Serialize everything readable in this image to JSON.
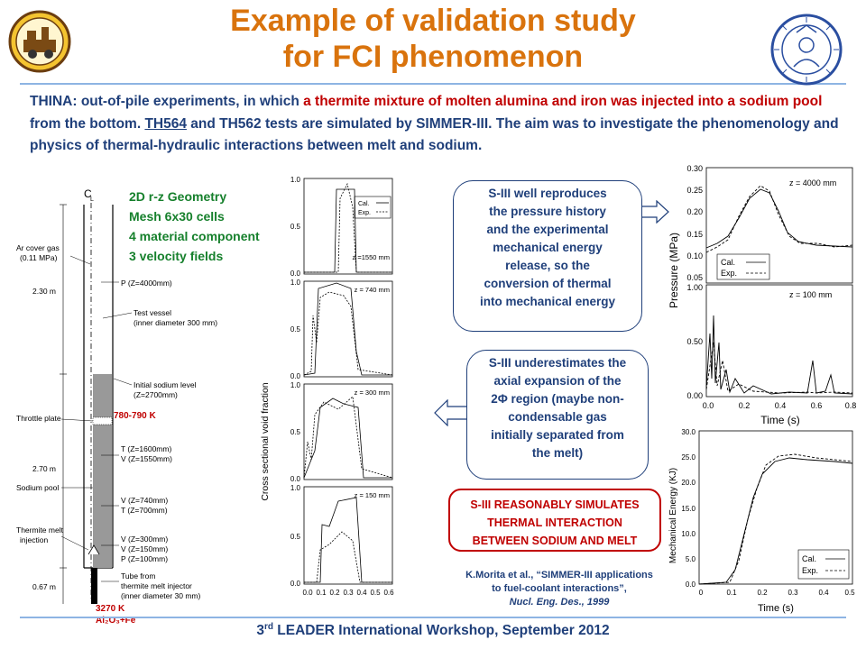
{
  "title": {
    "line1": "Example of validation study",
    "line2": "for FCI phenomenon"
  },
  "intro": {
    "p1": "THINA: out-of-pile experiments, in which ",
    "p2": "a thermite mixture of molten alumina and iron was injected into a sodium pool",
    "p3": " from the bottom. ",
    "p4": "TH564",
    "p5": " and TH562 tests are simulated by SIMMER-III. The aim was to investigate the phenomenology and physics of thermal-hydraulic interactions between melt and sodium."
  },
  "geometry": [
    "2D r-z Geometry",
    "Mesh 6x30 cells",
    "4 material component",
    "3 velocity fields"
  ],
  "schematic": {
    "cl": "C",
    "cl_sub": "L",
    "labels": [
      "Ar cover gas",
      "(0.11 MPa)",
      "2.30 m",
      "P (Z=4000mm)",
      "Test vessel",
      "(inner diameter 300 mm)",
      "Initial sodium level",
      "(Z=2700mm)",
      "Throttle plate",
      "T (Z=1600mm)",
      "V (Z=1550mm)",
      "2.70 m",
      "Sodium pool",
      "V (Z=740mm)",
      "T (Z=700mm)",
      "Thermite melt",
      "injection",
      "V (Z=300mm)",
      "V (Z=150mm)",
      "P (Z=100mm)",
      "0.67 m",
      "Tube from",
      "thermite melt injector",
      "(inner diameter 30 mm)"
    ],
    "temp_high": "780-790 K",
    "temp_low": "3270 K",
    "mixture": "Al₂O₃+Fe"
  },
  "void_chart": {
    "ylabel": "Cross sectional void fraction",
    "panels": [
      "z =1550 mm",
      "z = 740 mm",
      "z = 300 mm",
      "z = 150 mm"
    ],
    "legend": [
      "Cal.",
      "Exp."
    ],
    "yticks": [
      "0.0",
      "0.5",
      "1.0"
    ],
    "xticks": [
      "0.0",
      "0.1",
      "0.2",
      "0.3",
      "0.4",
      "0.5",
      "0.6"
    ]
  },
  "pressure_chart": {
    "ylabel": "Pressure (MPa)",
    "xlabel": "Time (s)",
    "panel1": {
      "label": "z = 4000 mm",
      "yticks": [
        "0.30",
        "0.25",
        "0.20",
        "0.15",
        "0.10",
        "0.05"
      ]
    },
    "panel2": {
      "label": "z = 100 mm",
      "yticks": [
        "1.00",
        "0.50",
        "0.00"
      ]
    },
    "xticks": [
      "0.0",
      "0.2",
      "0.4",
      "0.6",
      "0.8"
    ],
    "legend": [
      "Cal.",
      "Exp."
    ]
  },
  "energy_chart": {
    "ylabel": "Mechanical Energy (KJ)",
    "xlabel": "Time (s)",
    "yticks": [
      "30.0",
      "25.0",
      "20.0",
      "15.0",
      "10.0",
      "5.0",
      "0.0"
    ],
    "xticks": [
      "0",
      "0.1",
      "0.2",
      "0.3",
      "0.4",
      "0.5"
    ],
    "legend": [
      "Cal.",
      "Exp."
    ]
  },
  "box1": [
    "S-III well reproduces",
    "the pressure history",
    "and the experimental",
    "mechanical energy",
    "release, so the",
    "conversion of thermal",
    "into mechanical energy"
  ],
  "box2": [
    "S-III underestimates the",
    "axial expansion of the",
    "2Φ region (maybe non-",
    "condensable gas",
    "initially separated from",
    "the melt)"
  ],
  "box3": [
    "S-III REASONABLY SIMULATES",
    "THERMAL INTERACTION",
    "BETWEEN SODIUM AND MELT"
  ],
  "reference": {
    "l1": "K.Morita et al., “SIMMER-III applications",
    "l2": "to fuel-coolant interactions”,",
    "l3": "Nucl. Eng. Des., 1999"
  },
  "footer": {
    "pre": "3",
    "sup": "rd",
    "post": " LEADER International Workshop, September 2012"
  },
  "colors": {
    "title": "#d9730d",
    "text": "#1f3f7a",
    "accent_red": "#c00000",
    "green": "#16802c",
    "rule": "#8eb4e3"
  }
}
